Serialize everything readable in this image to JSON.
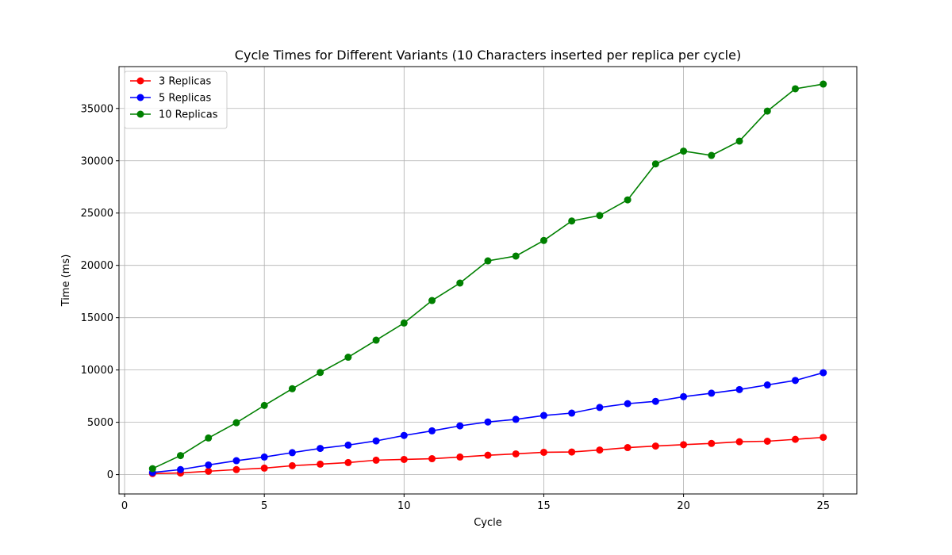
{
  "chart_data": {
    "type": "line",
    "title": "Cycle Times for Different Variants (10 Characters inserted per replica per cycle)",
    "xlabel": "Cycle",
    "ylabel": "Time (ms)",
    "xlim": [
      -0.2,
      26.2
    ],
    "ylim": [
      -1850,
      39000
    ],
    "xticks": [
      0,
      5,
      10,
      15,
      20,
      25
    ],
    "yticks": [
      0,
      5000,
      10000,
      15000,
      20000,
      25000,
      30000,
      35000
    ],
    "grid": true,
    "legend_position": "top-left",
    "x": [
      1,
      2,
      3,
      4,
      5,
      6,
      7,
      8,
      9,
      10,
      11,
      12,
      13,
      14,
      15,
      16,
      17,
      18,
      19,
      20,
      21,
      22,
      23,
      24,
      25
    ],
    "series": [
      {
        "name": "3 Replicas",
        "color": "#ff0000",
        "values": [
          100,
          150,
          320,
          480,
          620,
          850,
          1000,
          1150,
          1380,
          1450,
          1520,
          1680,
          1850,
          1980,
          2130,
          2160,
          2350,
          2580,
          2730,
          2860,
          2980,
          3140,
          3190,
          3370,
          3560
        ]
      },
      {
        "name": "5 Replicas",
        "color": "#0000ff",
        "values": [
          200,
          480,
          920,
          1330,
          1680,
          2100,
          2500,
          2820,
          3220,
          3740,
          4180,
          4660,
          5030,
          5280,
          5650,
          5880,
          6420,
          6780,
          7000,
          7450,
          7780,
          8130,
          8570,
          9000,
          9740
        ]
      },
      {
        "name": "10 Replicas",
        "color": "#008000",
        "values": [
          570,
          1820,
          3500,
          4960,
          6610,
          8210,
          9760,
          11220,
          12850,
          14490,
          16640,
          18310,
          20430,
          20890,
          22380,
          24240,
          24770,
          26260,
          29700,
          30920,
          30510,
          31880,
          34750,
          36880,
          37330
        ]
      }
    ]
  }
}
